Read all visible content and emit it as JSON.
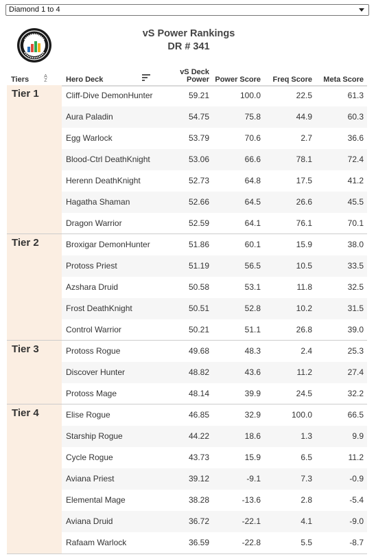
{
  "filter": {
    "selected": "Diamond 1 to 4"
  },
  "logo": {
    "name": "vicious-syndicate-logo"
  },
  "title": {
    "line1": "vS Power Rankings",
    "line2": "DR # 341"
  },
  "columns": {
    "tiers": "Tiers",
    "deck": "Hero Deck",
    "power_line1": "vS Deck",
    "power_line2": "Power",
    "power_score": "Power Score",
    "freq_score": "Freq Score",
    "meta_score": "Meta Score",
    "sort_a": "A",
    "sort_z": "Z"
  },
  "tiers": [
    {
      "label": "Tier 1",
      "rows": [
        {
          "deck": "Cliff-Dive DemonHunter",
          "power": "59.21",
          "power_score": "100.0",
          "freq": "22.5",
          "meta": "61.3"
        },
        {
          "deck": "Aura Paladin",
          "power": "54.75",
          "power_score": "75.8",
          "freq": "44.9",
          "meta": "60.3"
        },
        {
          "deck": "Egg Warlock",
          "power": "53.79",
          "power_score": "70.6",
          "freq": "2.7",
          "meta": "36.6"
        },
        {
          "deck": "Blood-Ctrl DeathKnight",
          "power": "53.06",
          "power_score": "66.6",
          "freq": "78.1",
          "meta": "72.4"
        },
        {
          "deck": "Herenn DeathKnight",
          "power": "52.73",
          "power_score": "64.8",
          "freq": "17.5",
          "meta": "41.2"
        },
        {
          "deck": "Hagatha Shaman",
          "power": "52.66",
          "power_score": "64.5",
          "freq": "26.6",
          "meta": "45.5"
        },
        {
          "deck": "Dragon Warrior",
          "power": "52.59",
          "power_score": "64.1",
          "freq": "76.1",
          "meta": "70.1"
        }
      ]
    },
    {
      "label": "Tier 2",
      "rows": [
        {
          "deck": "Broxigar DemonHunter",
          "power": "51.86",
          "power_score": "60.1",
          "freq": "15.9",
          "meta": "38.0"
        },
        {
          "deck": "Protoss Priest",
          "power": "51.19",
          "power_score": "56.5",
          "freq": "10.5",
          "meta": "33.5"
        },
        {
          "deck": "Azshara Druid",
          "power": "50.58",
          "power_score": "53.1",
          "freq": "11.8",
          "meta": "32.5"
        },
        {
          "deck": "Frost DeathKnight",
          "power": "50.51",
          "power_score": "52.8",
          "freq": "10.2",
          "meta": "31.5"
        },
        {
          "deck": "Control Warrior",
          "power": "50.21",
          "power_score": "51.1",
          "freq": "26.8",
          "meta": "39.0"
        }
      ]
    },
    {
      "label": "Tier 3",
      "rows": [
        {
          "deck": "Protoss Rogue",
          "power": "49.68",
          "power_score": "48.3",
          "freq": "2.4",
          "meta": "25.3"
        },
        {
          "deck": "Discover Hunter",
          "power": "48.82",
          "power_score": "43.6",
          "freq": "11.2",
          "meta": "27.4"
        },
        {
          "deck": "Protoss Mage",
          "power": "48.14",
          "power_score": "39.9",
          "freq": "24.5",
          "meta": "32.2"
        }
      ]
    },
    {
      "label": "Tier 4",
      "rows": [
        {
          "deck": "Elise Rogue",
          "power": "46.85",
          "power_score": "32.9",
          "freq": "100.0",
          "meta": "66.5"
        },
        {
          "deck": "Starship Rogue",
          "power": "44.22",
          "power_score": "18.6",
          "freq": "1.3",
          "meta": "9.9"
        },
        {
          "deck": "Cycle Rogue",
          "power": "43.73",
          "power_score": "15.9",
          "freq": "6.5",
          "meta": "11.2"
        },
        {
          "deck": "Aviana Priest",
          "power": "39.12",
          "power_score": "-9.1",
          "freq": "7.3",
          "meta": "-0.9"
        },
        {
          "deck": "Elemental Mage",
          "power": "38.28",
          "power_score": "-13.6",
          "freq": "2.8",
          "meta": "-5.4"
        },
        {
          "deck": "Aviana Druid",
          "power": "36.72",
          "power_score": "-22.1",
          "freq": "4.1",
          "meta": "-9.0"
        },
        {
          "deck": "Rafaam Warlock",
          "power": "36.59",
          "power_score": "-22.8",
          "freq": "5.5",
          "meta": "-8.7"
        }
      ]
    }
  ],
  "colors": {
    "tier_cell": "#fbeee2",
    "row_alt": "#f6f6f6",
    "text": "#333333"
  }
}
